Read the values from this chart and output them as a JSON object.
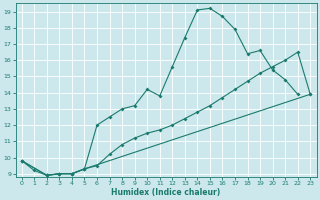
{
  "xlabel": "Humidex (Indice chaleur)",
  "bg_color": "#cce8ec",
  "line_color": "#1a7a6e",
  "grid_color": "#b0d4d8",
  "xlim": [
    -0.5,
    23.5
  ],
  "ylim": [
    8.8,
    19.5
  ],
  "xticks": [
    0,
    1,
    2,
    3,
    4,
    5,
    6,
    7,
    8,
    9,
    10,
    11,
    12,
    13,
    14,
    15,
    16,
    17,
    18,
    19,
    20,
    21,
    22,
    23
  ],
  "yticks": [
    9,
    10,
    11,
    12,
    13,
    14,
    15,
    16,
    17,
    18,
    19
  ],
  "line1_x": [
    0,
    1,
    2,
    3,
    4,
    5,
    6,
    7,
    8,
    9,
    10,
    11,
    12,
    13,
    14,
    15,
    16,
    17,
    18,
    19,
    20,
    21,
    22
  ],
  "line1_y": [
    9.8,
    9.2,
    8.9,
    9.0,
    9.0,
    9.3,
    12.0,
    12.5,
    13.0,
    13.2,
    14.2,
    13.8,
    15.6,
    17.4,
    19.1,
    19.2,
    18.7,
    17.9,
    16.4,
    16.6,
    15.4,
    14.8,
    13.9
  ],
  "line2_x": [
    0,
    2,
    3,
    4,
    5,
    6,
    7,
    8,
    9,
    10,
    11,
    12,
    13,
    14,
    15,
    16,
    17,
    18,
    19,
    20,
    21,
    22,
    23
  ],
  "line2_y": [
    9.8,
    8.9,
    9.0,
    9.0,
    9.3,
    9.5,
    10.2,
    10.8,
    11.2,
    11.5,
    11.7,
    12.0,
    12.4,
    12.8,
    13.2,
    13.7,
    14.2,
    14.7,
    15.2,
    15.6,
    16.0,
    16.5,
    13.9
  ],
  "line3_x": [
    0,
    2,
    3,
    4,
    5,
    23
  ],
  "line3_y": [
    9.8,
    8.9,
    9.0,
    9.0,
    9.3,
    13.9
  ]
}
